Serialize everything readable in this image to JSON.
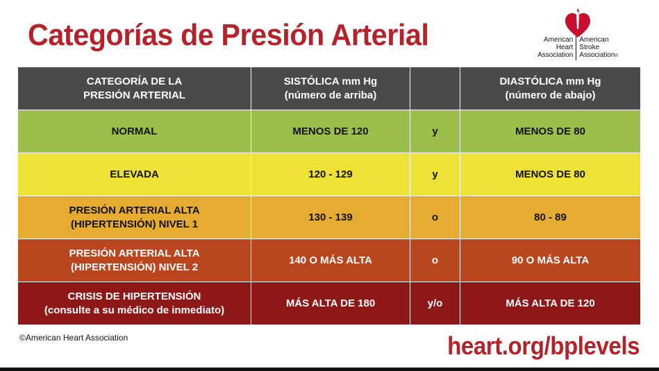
{
  "title": "Categorías de Presión Arterial",
  "logo": {
    "left_lines": [
      "American",
      "Heart",
      "Association"
    ],
    "right_lines": [
      "American",
      "Stroke",
      "Association"
    ],
    "trademark": "®"
  },
  "table": {
    "headers": [
      {
        "line1": "CATEGORÍA DE LA",
        "line2": "PRESIÓN ARTERIAL"
      },
      {
        "line1": "SISTÓLICA mm Hg",
        "line2": "(número de arriba)"
      },
      {
        "line1": "",
        "line2": ""
      },
      {
        "line1": "DIASTÓLICA mm Hg",
        "line2": "(número de abajo)"
      }
    ],
    "rows": [
      {
        "cat1": "NORMAL",
        "cat2": "",
        "sys": "MENOS DE 120",
        "conj": "y",
        "dia": "MENOS DE 80"
      },
      {
        "cat1": "ELEVADA",
        "cat2": "",
        "sys": "120 - 129",
        "conj": "y",
        "dia": "MENOS DE 80"
      },
      {
        "cat1": "PRESIÓN ARTERIAL ALTA",
        "cat2": "(HIPERTENSIÓN) NIVEL 1",
        "sys": "130 - 139",
        "conj": "o",
        "dia": "80 - 89"
      },
      {
        "cat1": "PRESIÓN ARTERIAL ALTA",
        "cat2": "(HIPERTENSIÓN) NIVEL 2",
        "sys": "140 O MÁS ALTA",
        "conj": "o",
        "dia": "90 O MÁS ALTA"
      },
      {
        "cat1": "CRISIS DE HIPERTENSIÓN",
        "cat2": "(consulte a su médico de inmediato)",
        "sys": "MÁS ALTA DE 180",
        "conj": "y/o",
        "dia": "MÁS ALTA DE 120"
      }
    ]
  },
  "colors": {
    "brand_red": "#b5222a",
    "header": "#4a4a4a",
    "normal": "#9cbf4b",
    "elevated": "#ede235",
    "stage1": "#e6ac32",
    "stage2": "#b9461e",
    "crisis": "#8e1717"
  },
  "icons": {
    "logo": "heart-torch-icon"
  },
  "footer": {
    "copyright": "©American Heart Association",
    "url": "heart.org/bplevels"
  }
}
